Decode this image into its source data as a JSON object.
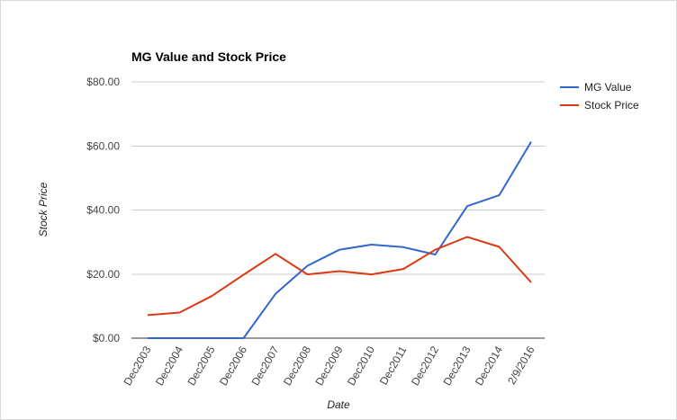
{
  "chart_data": {
    "type": "line",
    "title": "MG Value and Stock Price",
    "xlabel": "Date",
    "ylabel": "Stock Price",
    "categories": [
      "Dec2003",
      "Dec2004",
      "Dec2005",
      "Dec2006",
      "Dec2007",
      "Dec2008",
      "Dec2009",
      "Dec2010",
      "Dec2011",
      "Dec2012",
      "Dec2013",
      "Dec2014",
      "2/9/2016"
    ],
    "ylim": [
      0,
      80
    ],
    "yticks": [
      0,
      20,
      40,
      60,
      80
    ],
    "ytick_labels": [
      "$0.00",
      "$20.00",
      "$40.00",
      "$60.00",
      "$80.00"
    ],
    "grid": true,
    "legend_position": "right",
    "series": [
      {
        "name": "MG Value",
        "color": "#3366cc",
        "values": [
          0,
          0,
          0,
          0,
          13.8,
          22.6,
          27.6,
          29.2,
          28.4,
          26.1,
          41.2,
          44.6,
          61.3
        ]
      },
      {
        "name": "Stock Price",
        "color": "#dc3912",
        "values": [
          7.2,
          8.0,
          13.1,
          19.8,
          26.3,
          19.9,
          20.9,
          19.9,
          21.6,
          27.6,
          31.6,
          28.5,
          17.4
        ]
      }
    ]
  }
}
